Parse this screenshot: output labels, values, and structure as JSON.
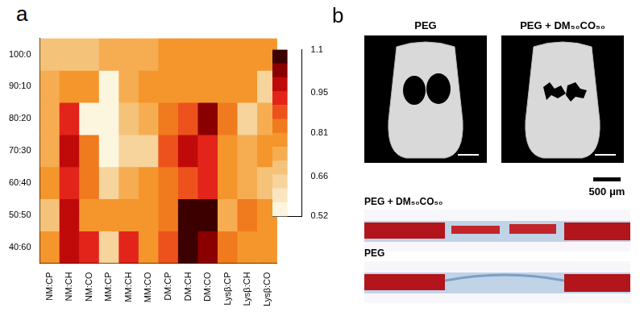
{
  "chart_data": {
    "type": "heatmap",
    "panel_label": "a",
    "categories": [
      "NM:CP",
      "NM:CH",
      "NM:CO",
      "MM:CP",
      "MM:CH",
      "MM:CO",
      "DM:CP",
      "DM:CH",
      "DM:CO",
      "Lysβ:CP",
      "Lysβ:CH",
      "Lysβ:CO"
    ],
    "y_categories": [
      "100:0",
      "90:10",
      "80:20",
      "70:30",
      "60:40",
      "50:50",
      "40:60"
    ],
    "cells": [
      [
        0.7,
        0.7,
        0.7,
        0.75,
        0.75,
        0.75,
        0.8,
        0.8,
        0.8,
        0.8,
        0.8,
        0.8
      ],
      [
        0.75,
        0.78,
        0.78,
        0.53,
        0.72,
        0.8,
        0.8,
        0.8,
        0.78,
        0.78,
        0.78,
        0.66
      ],
      [
        0.75,
        0.92,
        0.55,
        0.55,
        0.7,
        0.72,
        0.82,
        0.88,
        1.05,
        0.82,
        0.66,
        0.75
      ],
      [
        0.75,
        0.98,
        0.85,
        0.54,
        0.62,
        0.64,
        0.88,
        0.98,
        0.92,
        0.8,
        0.75,
        0.78
      ],
      [
        0.78,
        0.92,
        0.82,
        0.62,
        0.72,
        0.8,
        0.85,
        0.88,
        0.95,
        0.8,
        0.75,
        0.7
      ],
      [
        0.68,
        0.98,
        0.8,
        0.8,
        0.8,
        0.8,
        0.82,
        1.08,
        1.1,
        0.72,
        0.85,
        0.8
      ],
      [
        0.8,
        0.98,
        0.92,
        0.62,
        0.95,
        0.8,
        0.88,
        1.08,
        1.05,
        0.85,
        0.8,
        0.8
      ]
    ],
    "colorbar": {
      "range": [
        0.52,
        1.1
      ],
      "ticks": [
        0.52,
        0.66,
        0.81,
        0.95,
        1.1
      ]
    }
  },
  "panel_b": {
    "label": "b",
    "images": [
      {
        "title": "PEG"
      },
      {
        "title": "PEG + DM₅₀CO₅₀"
      }
    ],
    "scale_bar": "500 μm",
    "histology": [
      {
        "label": "PEG + DM₅₀CO₅₀"
      },
      {
        "label": "PEG"
      }
    ]
  }
}
